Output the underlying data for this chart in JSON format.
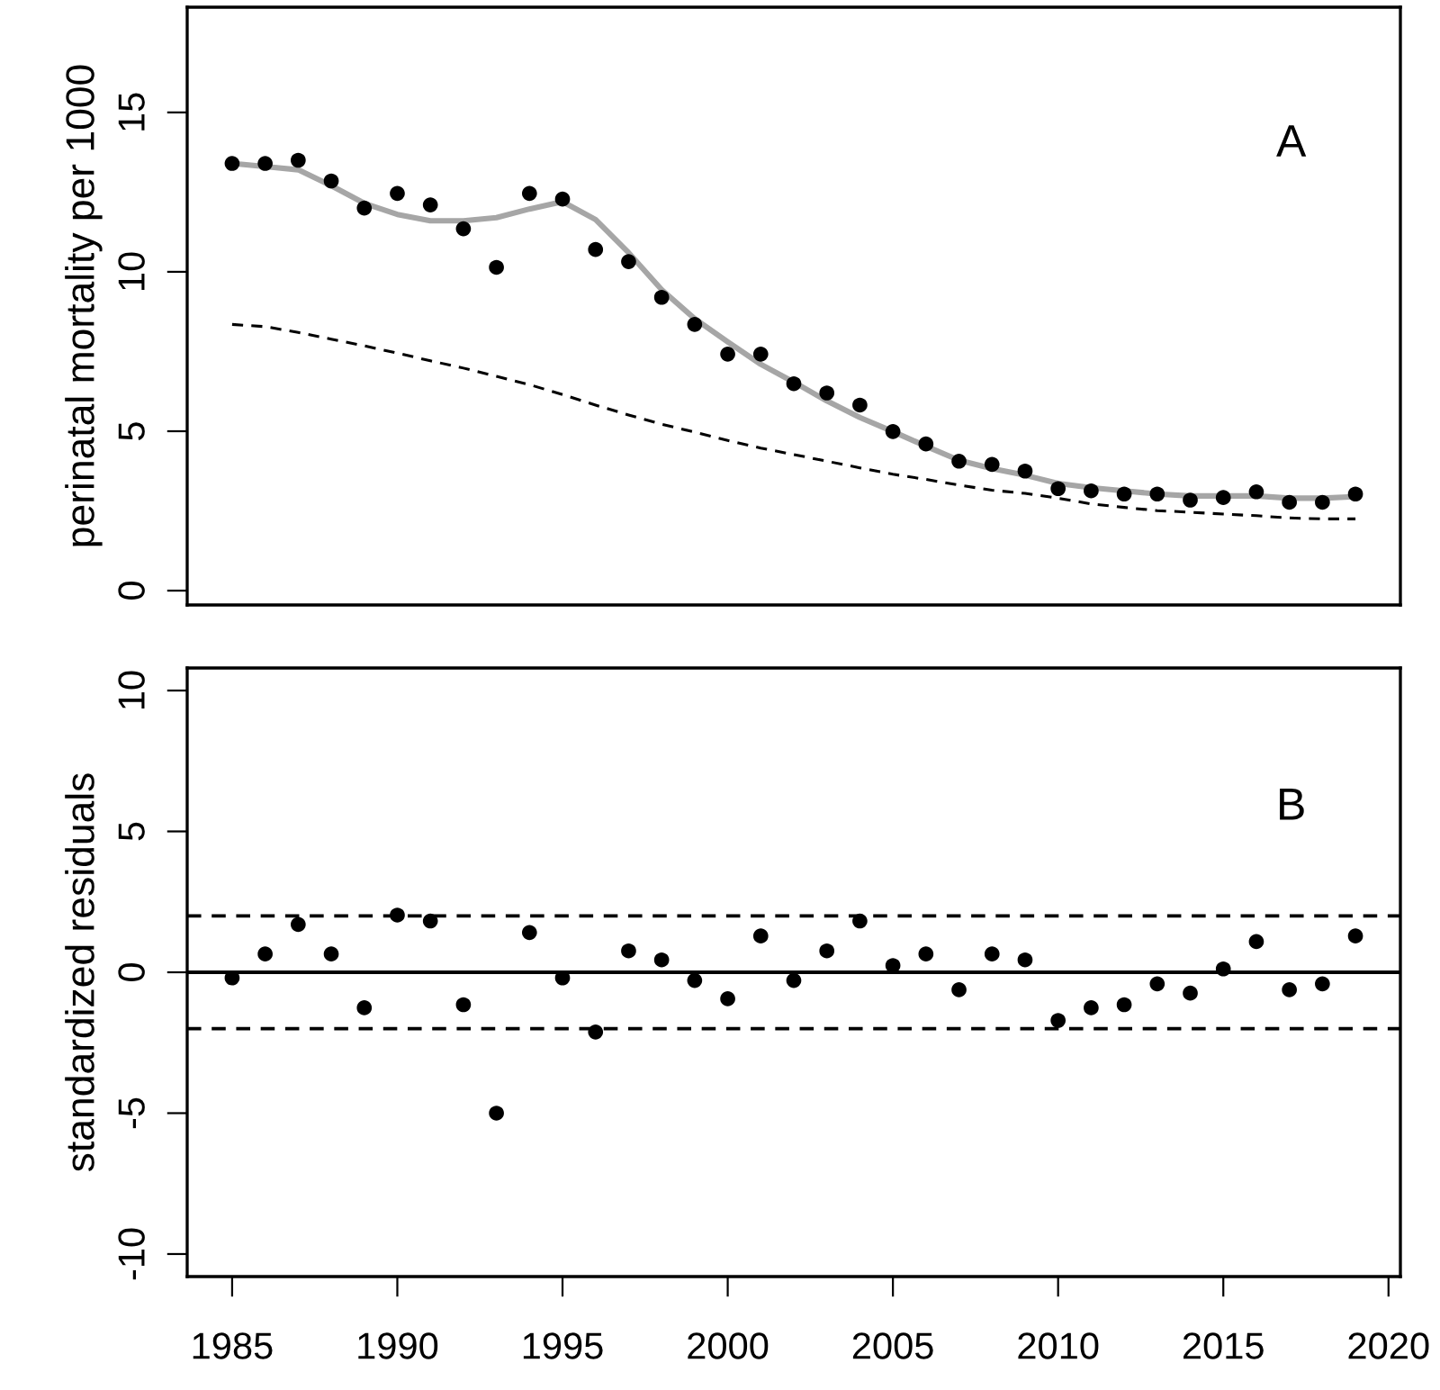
{
  "chart_data": [
    {
      "type": "scatter",
      "ylabel": "perinatal mortality per 1000",
      "annotations": [
        "A"
      ],
      "xlim": [
        1983.64,
        2020.36
      ],
      "ylim": [
        -0.45,
        18.3
      ],
      "yticks": [
        0,
        5,
        10,
        15
      ],
      "tick_labels": "y",
      "grid": false,
      "legend": false,
      "x": [
        1985,
        1986,
        1987,
        1988,
        1989,
        1990,
        1991,
        1992,
        1993,
        1994,
        1995,
        1996,
        1997,
        1998,
        1999,
        2000,
        2001,
        2002,
        2003,
        2004,
        2005,
        2006,
        2007,
        2008,
        2009,
        2010,
        2011,
        2012,
        2013,
        2014,
        2015,
        2016,
        2017,
        2018,
        2019
      ],
      "series": [
        {
          "type": "scatter",
          "marker": "circle",
          "color": "#000000",
          "values": [
            13.4,
            13.4,
            13.5,
            12.85,
            12.0,
            12.46,
            12.1,
            11.35,
            10.14,
            12.46,
            12.28,
            10.7,
            10.32,
            9.2,
            8.35,
            7.42,
            7.42,
            6.49,
            6.2,
            5.82,
            4.99,
            4.6,
            4.06,
            3.96,
            3.75,
            3.2,
            3.13,
            3.03,
            3.03,
            2.84,
            2.92,
            3.1,
            2.77,
            2.77,
            3.03
          ]
        },
        {
          "type": "line",
          "marker": "none",
          "line_style": "solid",
          "color": "#a6a6a6",
          "values": [
            13.4,
            13.3,
            13.2,
            12.7,
            12.15,
            11.8,
            11.6,
            11.6,
            11.7,
            11.97,
            12.2,
            11.64,
            10.6,
            9.44,
            8.53,
            7.8,
            7.1,
            6.54,
            5.95,
            5.43,
            4.99,
            4.53,
            4.09,
            3.83,
            3.62,
            3.36,
            3.23,
            3.13,
            3.03,
            2.97,
            2.97,
            2.97,
            2.9,
            2.9,
            2.95
          ]
        },
        {
          "type": "line",
          "marker": "none",
          "line_style": "dashed",
          "color": "#000000",
          "values": [
            8.35,
            8.28,
            8.1,
            7.89,
            7.68,
            7.45,
            7.21,
            6.98,
            6.72,
            6.46,
            6.15,
            5.82,
            5.51,
            5.22,
            4.97,
            4.71,
            4.47,
            4.27,
            4.06,
            3.85,
            3.65,
            3.49,
            3.31,
            3.15,
            3.05,
            2.9,
            2.72,
            2.61,
            2.51,
            2.46,
            2.4,
            2.35,
            2.28,
            2.25,
            2.25
          ]
        }
      ]
    },
    {
      "type": "scatter",
      "ylabel": "standardized residuals",
      "annotations": [
        "B"
      ],
      "xlim": [
        1983.64,
        2020.36
      ],
      "ylim": [
        -10.8,
        10.8
      ],
      "yticks": [
        -10,
        -5,
        0,
        5,
        10
      ],
      "xticks": [
        1985,
        1990,
        1995,
        2000,
        2005,
        2010,
        2015,
        2020
      ],
      "grid": false,
      "legend": false,
      "marker": "circle",
      "x": [
        1985,
        1986,
        1987,
        1988,
        1989,
        1990,
        1991,
        1992,
        1993,
        1994,
        1995,
        1996,
        1997,
        1998,
        1999,
        2000,
        2001,
        2002,
        2003,
        2004,
        2005,
        2006,
        2007,
        2008,
        2009,
        2010,
        2011,
        2012,
        2013,
        2014,
        2015,
        2016,
        2017,
        2018,
        2019
      ],
      "values": [
        -0.2,
        0.65,
        1.7,
        0.65,
        -1.26,
        2.03,
        1.82,
        -1.15,
        -5.0,
        1.41,
        -0.2,
        -2.12,
        0.76,
        0.44,
        -0.29,
        -0.94,
        1.29,
        -0.29,
        0.76,
        1.82,
        0.24,
        0.65,
        -0.62,
        0.65,
        0.44,
        -1.71,
        -1.26,
        -1.15,
        -0.41,
        -0.74,
        0.12,
        1.09,
        -0.62,
        -0.41,
        1.29
      ],
      "color": "#000000",
      "ref_lines": [
        {
          "axis": "y",
          "value": 0,
          "line_style": "solid",
          "color": "#000000"
        },
        {
          "axis": "y",
          "value": 2,
          "line_style": "dashed",
          "color": "#000000"
        },
        {
          "axis": "y",
          "value": -2,
          "line_style": "dashed",
          "color": "#000000"
        }
      ]
    }
  ]
}
